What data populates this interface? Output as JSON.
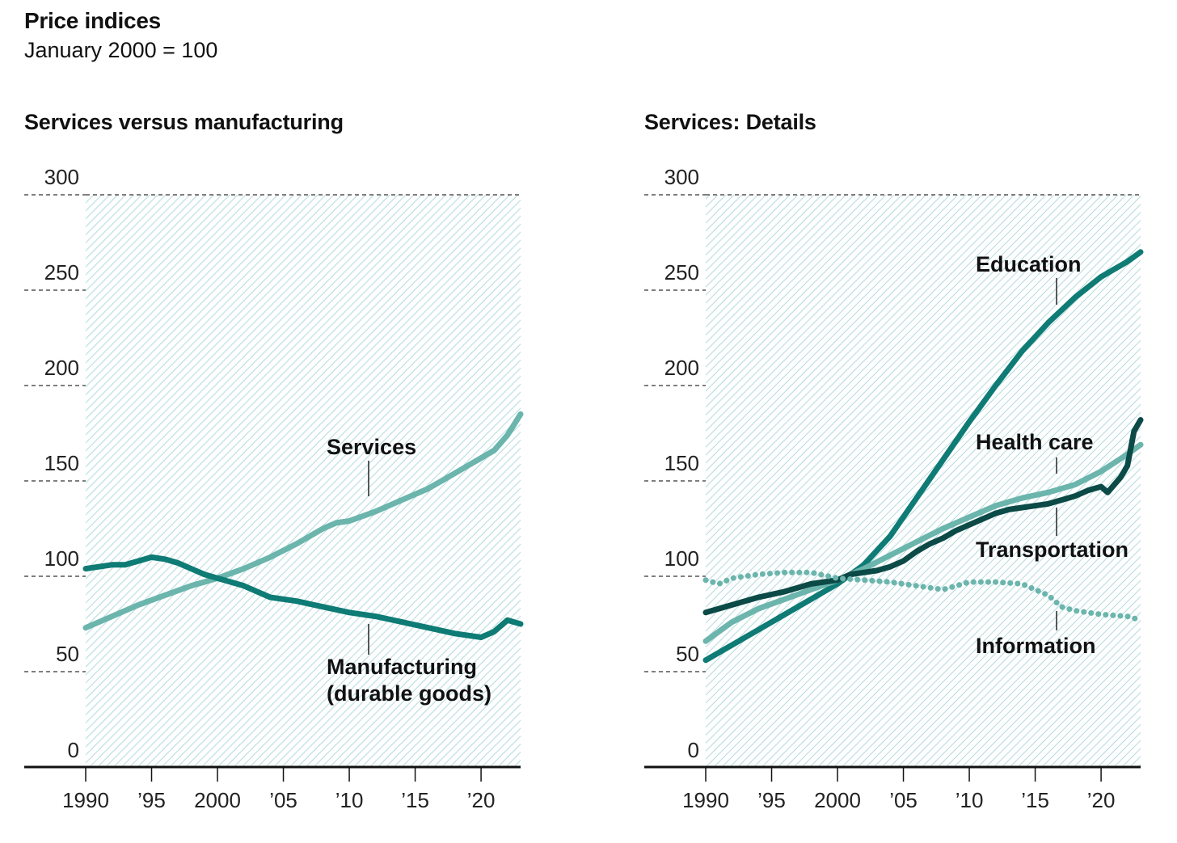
{
  "title": "Price indices",
  "subtitle": "January 2000 = 100",
  "colors": {
    "light_teal": "#6bb5ad",
    "mid_teal": "#0f7b75",
    "dark_teal": "#0b4a47",
    "hatch": "#a8d4d6",
    "grid": "#333333"
  },
  "chart_data": [
    {
      "type": "line",
      "title": "Services versus manufacturing",
      "xlim": [
        1990,
        2023
      ],
      "ylim": [
        0,
        300
      ],
      "yticks": [
        0,
        50,
        100,
        150,
        200,
        250,
        300
      ],
      "ytick_labels": [
        "0",
        "50",
        "100",
        "150",
        "200",
        "250",
        "300"
      ],
      "xticks": [
        1990,
        1995,
        2000,
        2005,
        2010,
        2015,
        2020
      ],
      "xtick_labels": [
        "1990",
        "’95",
        "2000",
        "’05",
        "’10",
        "’15",
        "’20"
      ],
      "grid": "dashed horizontal",
      "series": [
        {
          "name": "Services",
          "color": "#6bb5ad",
          "style": "solid",
          "x": [
            1990,
            1992,
            1994,
            1996,
            1998,
            2000,
            2002,
            2004,
            2006,
            2008,
            2009,
            2010,
            2012,
            2014,
            2016,
            2018,
            2019,
            2020,
            2021,
            2022,
            2023
          ],
          "y": [
            73,
            79,
            85,
            90,
            95,
            99,
            104,
            110,
            117,
            125,
            128,
            129,
            134,
            140,
            146,
            154,
            158,
            162,
            166,
            174,
            185
          ]
        },
        {
          "name": "Manufacturing\n(durable goods)",
          "color": "#0f7b75",
          "style": "solid",
          "x": [
            1990,
            1991,
            1992,
            1993,
            1994,
            1995,
            1996,
            1997,
            1998,
            1999,
            2000,
            2002,
            2004,
            2006,
            2008,
            2010,
            2012,
            2014,
            2016,
            2018,
            2020,
            2021,
            2022,
            2023
          ],
          "y": [
            104,
            105,
            106,
            106,
            108,
            110,
            109,
            107,
            104,
            101,
            99,
            95,
            89,
            87,
            84,
            81,
            79,
            76,
            73,
            70,
            68,
            71,
            77,
            75
          ]
        }
      ]
    },
    {
      "type": "line",
      "title": "Services: Details",
      "xlim": [
        1990,
        2023
      ],
      "ylim": [
        0,
        300
      ],
      "yticks": [
        0,
        50,
        100,
        150,
        200,
        250,
        300
      ],
      "ytick_labels": [
        "0",
        "50",
        "100",
        "150",
        "200",
        "250",
        "300"
      ],
      "xticks": [
        1990,
        1995,
        2000,
        2005,
        2010,
        2015,
        2020
      ],
      "xtick_labels": [
        "1990",
        "’95",
        "2000",
        "’05",
        "’10",
        "’15",
        "’20"
      ],
      "grid": "dashed horizontal",
      "series": [
        {
          "name": "Education",
          "color": "#0f7b75",
          "style": "solid",
          "x": [
            1990,
            1992,
            1994,
            1996,
            1998,
            2000,
            2002,
            2004,
            2006,
            2008,
            2010,
            2012,
            2014,
            2016,
            2018,
            2020,
            2022,
            2023
          ],
          "y": [
            56,
            64,
            72,
            80,
            88,
            96,
            106,
            121,
            141,
            161,
            181,
            200,
            218,
            233,
            246,
            257,
            265,
            270
          ]
        },
        {
          "name": "Health care",
          "color": "#6bb5ad",
          "style": "solid",
          "x": [
            1990,
            1992,
            1994,
            1996,
            1998,
            2000,
            2002,
            2004,
            2006,
            2008,
            2010,
            2012,
            2014,
            2016,
            2018,
            2020,
            2022,
            2023
          ],
          "y": [
            66,
            76,
            83,
            88,
            93,
            98,
            104,
            111,
            118,
            125,
            131,
            137,
            141,
            144,
            148,
            155,
            164,
            169
          ]
        },
        {
          "name": "Transportation",
          "color": "#0b4a47",
          "style": "solid",
          "x": [
            1990,
            1992,
            1994,
            1996,
            1998,
            2000,
            2001,
            2002,
            2003,
            2004,
            2005,
            2006,
            2007,
            2008,
            2009,
            2010,
            2011,
            2012,
            2013,
            2014,
            2015,
            2016,
            2017,
            2018,
            2019,
            2020,
            2020.5,
            2021,
            2021.5,
            2022,
            2022.5,
            2023
          ],
          "y": [
            81,
            85,
            89,
            92,
            96,
            98,
            101,
            102,
            103,
            105,
            108,
            113,
            117,
            120,
            124,
            127,
            130,
            133,
            135,
            136,
            137,
            138,
            140,
            142,
            145,
            147,
            144,
            148,
            152,
            158,
            176,
            182
          ]
        },
        {
          "name": "Information",
          "color": "#6bb5ad",
          "style": "dotted",
          "x": [
            1990,
            1991,
            1992,
            1994,
            1996,
            1998,
            2000,
            2002,
            2004,
            2006,
            2008,
            2010,
            2012,
            2014,
            2016,
            2017,
            2018,
            2020,
            2022,
            2023
          ],
          "y": [
            98,
            96,
            99,
            101,
            102,
            102,
            99,
            98,
            97,
            95,
            93,
            97,
            97,
            96,
            90,
            84,
            82,
            80,
            79,
            77
          ]
        }
      ]
    }
  ]
}
